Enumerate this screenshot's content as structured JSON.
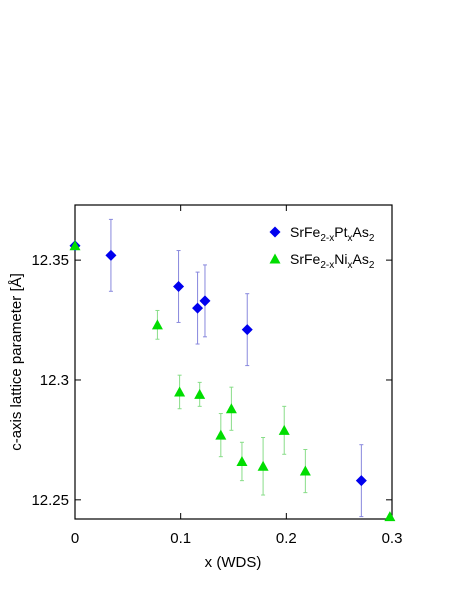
{
  "chart_data": {
    "type": "scatter",
    "title": "",
    "xlabel": "x (WDS)",
    "ylabel": "c-axis lattice parameter [Å]",
    "xlim": [
      0,
      0.3
    ],
    "ylim": [
      12.242,
      12.373
    ],
    "x_ticks": [
      {
        "value": 0,
        "label": "0"
      },
      {
        "value": 0.1,
        "label": "0.1"
      },
      {
        "value": 0.2,
        "label": "0.2"
      },
      {
        "value": 0.3,
        "label": "0.3"
      }
    ],
    "y_ticks": [
      {
        "value": 12.25,
        "label": "12.25"
      },
      {
        "value": 12.3,
        "label": "12.3"
      },
      {
        "value": 12.35,
        "label": "12.35"
      }
    ],
    "grid": false,
    "legend_position": "top-right",
    "series": [
      {
        "legend": {
          "base": "SrFe",
          "s1": "2-x",
          "mid": "Pt",
          "s2": "x",
          "end": "As",
          "s3": "2"
        },
        "marker": "diamond",
        "color": "#0000ee",
        "errorbar_color": "#8888dd",
        "points": [
          {
            "x": 0.0,
            "y": 12.356,
            "err": 0.0
          },
          {
            "x": 0.034,
            "y": 12.352,
            "err": 0.015
          },
          {
            "x": 0.098,
            "y": 12.339,
            "err": 0.015
          },
          {
            "x": 0.116,
            "y": 12.33,
            "err": 0.015
          },
          {
            "x": 0.123,
            "y": 12.333,
            "err": 0.015
          },
          {
            "x": 0.163,
            "y": 12.321,
            "err": 0.015
          },
          {
            "x": 0.271,
            "y": 12.258,
            "err": 0.015
          }
        ]
      },
      {
        "legend": {
          "base": "SrFe",
          "s1": "2-x",
          "mid": "Ni",
          "s2": "x",
          "end": "As",
          "s3": "2"
        },
        "marker": "triangle",
        "color": "#00dd00",
        "errorbar_color": "#88dd88",
        "points": [
          {
            "x": 0.0,
            "y": 12.356,
            "err": 0.0
          },
          {
            "x": 0.078,
            "y": 12.323,
            "err": 0.006
          },
          {
            "x": 0.099,
            "y": 12.295,
            "err": 0.007
          },
          {
            "x": 0.118,
            "y": 12.294,
            "err": 0.005
          },
          {
            "x": 0.138,
            "y": 12.277,
            "err": 0.009
          },
          {
            "x": 0.148,
            "y": 12.288,
            "err": 0.009
          },
          {
            "x": 0.158,
            "y": 12.266,
            "err": 0.008
          },
          {
            "x": 0.178,
            "y": 12.264,
            "err": 0.012
          },
          {
            "x": 0.198,
            "y": 12.279,
            "err": 0.01
          },
          {
            "x": 0.218,
            "y": 12.262,
            "err": 0.009
          },
          {
            "x": 0.298,
            "y": 12.243,
            "err": 0.0
          }
        ]
      }
    ]
  }
}
